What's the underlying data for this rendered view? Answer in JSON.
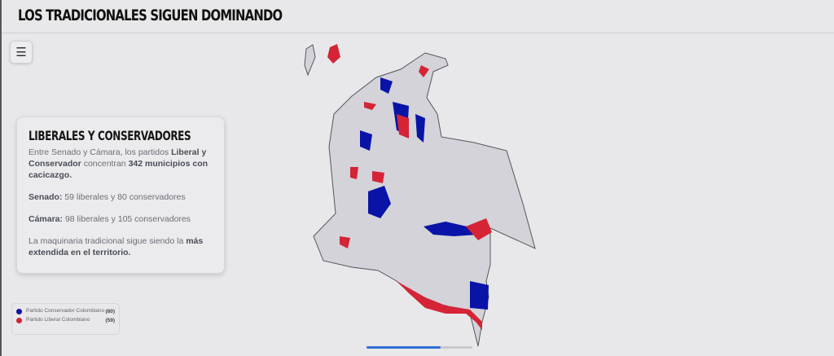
{
  "header": {
    "title": "LOS TRADICIONALES SIGUEN DOMINANDO"
  },
  "menu": {
    "icon": "hamburger-icon"
  },
  "card": {
    "title": "LIBERALES Y CONSERVADORES",
    "p1": {
      "a": "Entre Senado y Cámara, los partidos ",
      "b1": "Liberal y Conservador",
      "c": " concentran ",
      "b2": "342 municipios con cacicazgo."
    },
    "p2": {
      "b": "Senado:",
      "t": " 59 liberales y 80 conservadores"
    },
    "p3": {
      "b": "Cámara:",
      "t": " 98 liberales y 105 conservadores"
    },
    "p4": {
      "t": "La maquinaria tradicional sigue siendo la ",
      "b": "más extendida en el territorio."
    }
  },
  "legend": [
    {
      "name": "Partido Conservador Colombiano",
      "count": "(80)",
      "color": "#0a13a8"
    },
    {
      "name": "Partido Liberal Colombiano",
      "count": "(59)",
      "color": "#d42436"
    }
  ],
  "colors": {
    "base": "#d3d3d9",
    "border": "#55565c",
    "liberal": "#d42436",
    "conservador": "#0a13a8"
  },
  "progress": {
    "percent": 70
  }
}
